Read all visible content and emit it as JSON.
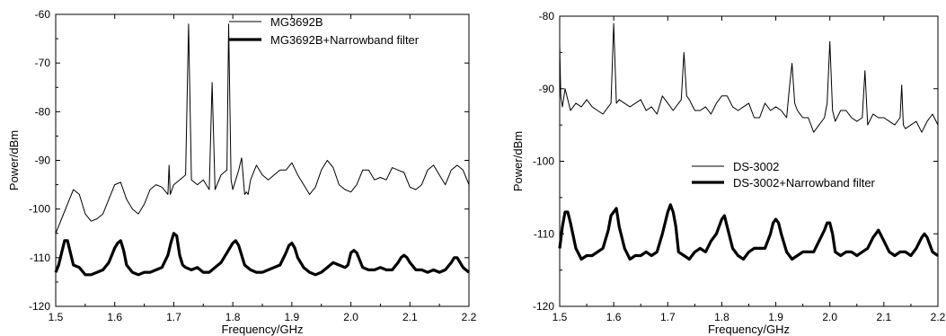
{
  "chart_data": [
    {
      "type": "line",
      "xlabel": "Frequency/GHz",
      "ylabel": "Power/dBm",
      "xlim": [
        1.5,
        2.2
      ],
      "ylim": [
        -120,
        -60
      ],
      "xticks": [
        "1.5",
        "1.6",
        "1.7",
        "1.8",
        "1.9",
        "2.0",
        "2.1",
        "2.2"
      ],
      "yticks": [
        "-120",
        "-110",
        "-100",
        "-90",
        "-80",
        "-70",
        "-60"
      ],
      "legend_position": "top-right",
      "series": [
        {
          "name": "MG3692B",
          "color": "#000000",
          "weight": "thin",
          "x": [
            1.5,
            1.51,
            1.52,
            1.53,
            1.54,
            1.55,
            1.56,
            1.57,
            1.58,
            1.59,
            1.6,
            1.61,
            1.62,
            1.63,
            1.64,
            1.65,
            1.66,
            1.67,
            1.68,
            1.69,
            1.692,
            1.694,
            1.7,
            1.71,
            1.72,
            1.725,
            1.73,
            1.74,
            1.75,
            1.76,
            1.765,
            1.77,
            1.78,
            1.79,
            1.793,
            1.797,
            1.8,
            1.81,
            1.815,
            1.82,
            1.823,
            1.826,
            1.83,
            1.84,
            1.85,
            1.86,
            1.87,
            1.88,
            1.89,
            1.9,
            1.91,
            1.92,
            1.93,
            1.94,
            1.95,
            1.96,
            1.97,
            1.98,
            1.99,
            2.0,
            2.01,
            2.02,
            2.03,
            2.04,
            2.05,
            2.06,
            2.07,
            2.08,
            2.09,
            2.1,
            2.11,
            2.12,
            2.13,
            2.14,
            2.15,
            2.16,
            2.17,
            2.18,
            2.19,
            2.2
          ],
          "y": [
            -105,
            -102,
            -99,
            -96,
            -97,
            -101,
            -102.5,
            -102,
            -101,
            -98,
            -95,
            -94.5,
            -98,
            -100,
            -101,
            -99,
            -96,
            -95,
            -95.5,
            -97,
            -91,
            -97,
            -95,
            -94,
            -93,
            -62,
            -94,
            -95,
            -94,
            -96,
            -74,
            -96,
            -93,
            -92,
            -62,
            -94,
            -96,
            -92,
            -89.5,
            -97,
            -96.5,
            -97,
            -94,
            -91,
            -93,
            -94,
            -93,
            -92,
            -92,
            -90.5,
            -93,
            -95,
            -97,
            -95.5,
            -92,
            -90,
            -91.5,
            -95,
            -96,
            -96.5,
            -95,
            -92,
            -92,
            -94,
            -93.5,
            -94,
            -91.5,
            -92,
            -92.5,
            -95.5,
            -96,
            -95,
            -92,
            -91,
            -93,
            -95,
            -92,
            -91,
            -92,
            -95
          ]
        },
        {
          "name": "MG3692B+Narrowband filter",
          "color": "#000000",
          "weight": "thick",
          "x": [
            1.5,
            1.505,
            1.51,
            1.515,
            1.52,
            1.525,
            1.53,
            1.54,
            1.55,
            1.56,
            1.57,
            1.58,
            1.59,
            1.6,
            1.605,
            1.61,
            1.615,
            1.62,
            1.63,
            1.64,
            1.65,
            1.66,
            1.67,
            1.68,
            1.69,
            1.695,
            1.7,
            1.705,
            1.71,
            1.715,
            1.72,
            1.73,
            1.74,
            1.75,
            1.76,
            1.77,
            1.78,
            1.79,
            1.8,
            1.805,
            1.81,
            1.82,
            1.83,
            1.84,
            1.85,
            1.86,
            1.87,
            1.88,
            1.89,
            1.895,
            1.9,
            1.905,
            1.91,
            1.92,
            1.93,
            1.94,
            1.95,
            1.96,
            1.97,
            1.98,
            1.99,
            1.995,
            2.0,
            2.005,
            2.01,
            2.02,
            2.03,
            2.04,
            2.05,
            2.06,
            2.07,
            2.08,
            2.085,
            2.09,
            2.095,
            2.1,
            2.11,
            2.12,
            2.13,
            2.14,
            2.15,
            2.16,
            2.17,
            2.175,
            2.18,
            2.19,
            2.2
          ],
          "y": [
            -113,
            -111.5,
            -109,
            -106.5,
            -106.5,
            -109,
            -111.5,
            -112,
            -113.5,
            -113.5,
            -113,
            -112.5,
            -111,
            -108,
            -107,
            -106.5,
            -108.5,
            -111.5,
            -113,
            -113.5,
            -113,
            -113,
            -112.5,
            -112,
            -109.5,
            -107,
            -105,
            -105.5,
            -109.5,
            -111.5,
            -112,
            -112.5,
            -112,
            -113,
            -113,
            -112,
            -111,
            -109,
            -107,
            -106.5,
            -107.5,
            -111.5,
            -112.5,
            -113,
            -113,
            -112.5,
            -112,
            -111.5,
            -109,
            -107.5,
            -107,
            -108,
            -110,
            -112,
            -113,
            -113.5,
            -113,
            -112,
            -111,
            -111.5,
            -112,
            -111.5,
            -109,
            -108.5,
            -109,
            -112,
            -112.5,
            -112.5,
            -112,
            -112.5,
            -112.5,
            -111,
            -110,
            -109.5,
            -110,
            -111,
            -112.5,
            -112.5,
            -113,
            -112.5,
            -113,
            -112.5,
            -111,
            -110,
            -110,
            -112,
            -113
          ]
        }
      ]
    },
    {
      "type": "line",
      "xlabel": "Frequency/GHz",
      "ylabel": "Power/dBm",
      "xlim": [
        1.5,
        2.2
      ],
      "ylim": [
        -120,
        -80
      ],
      "xticks": [
        "1.5",
        "1.6",
        "1.7",
        "1.8",
        "1.9",
        "2.0",
        "2.1",
        "2.2"
      ],
      "yticks": [
        "-120",
        "-110",
        "-100",
        "-90",
        "-80"
      ],
      "legend_position": "center-right",
      "series": [
        {
          "name": "DS-3002",
          "color": "#000000",
          "weight": "thin",
          "x": [
            1.5,
            1.502,
            1.505,
            1.51,
            1.52,
            1.53,
            1.54,
            1.55,
            1.56,
            1.57,
            1.58,
            1.59,
            1.595,
            1.6,
            1.605,
            1.61,
            1.62,
            1.63,
            1.64,
            1.65,
            1.66,
            1.67,
            1.68,
            1.69,
            1.7,
            1.71,
            1.72,
            1.725,
            1.73,
            1.735,
            1.74,
            1.75,
            1.76,
            1.77,
            1.78,
            1.79,
            1.8,
            1.81,
            1.82,
            1.83,
            1.84,
            1.85,
            1.86,
            1.87,
            1.88,
            1.89,
            1.9,
            1.91,
            1.92,
            1.925,
            1.93,
            1.935,
            1.94,
            1.95,
            1.96,
            1.97,
            1.98,
            1.99,
            1.995,
            2.0,
            2.005,
            2.01,
            2.02,
            2.03,
            2.04,
            2.05,
            2.06,
            2.065,
            2.07,
            2.08,
            2.09,
            2.1,
            2.11,
            2.12,
            2.13,
            2.133,
            2.136,
            2.14,
            2.15,
            2.16,
            2.17,
            2.18,
            2.19,
            2.2
          ],
          "y": [
            -84,
            -91,
            -92.5,
            -90,
            -93,
            -92,
            -92.5,
            -91.5,
            -92.5,
            -93,
            -93.5,
            -92.5,
            -92,
            -81,
            -92,
            -91.5,
            -92,
            -92.5,
            -92,
            -91.5,
            -93,
            -92.5,
            -93.5,
            -91,
            -92,
            -93,
            -92,
            -91.5,
            -85,
            -91,
            -91.5,
            -93,
            -93,
            -92.5,
            -93.5,
            -92,
            -91,
            -91,
            -92.5,
            -93,
            -92.5,
            -92,
            -94,
            -94,
            -92,
            -93,
            -92.5,
            -93,
            -94,
            -90,
            -86.5,
            -92,
            -93,
            -94,
            -94,
            -96,
            -95,
            -94,
            -92,
            -83.5,
            -93,
            -94.5,
            -93,
            -93,
            -94,
            -94.5,
            -94,
            -87.5,
            -95,
            -93.5,
            -94,
            -94,
            -94.5,
            -95,
            -94,
            -89.5,
            -95,
            -95.5,
            -95,
            -94.5,
            -96,
            -94.5,
            -93.5,
            -95
          ]
        },
        {
          "name": "DS-3002+Narrowband filter",
          "color": "#000000",
          "weight": "thick",
          "x": [
            1.5,
            1.505,
            1.51,
            1.515,
            1.52,
            1.53,
            1.54,
            1.55,
            1.56,
            1.57,
            1.58,
            1.59,
            1.595,
            1.6,
            1.605,
            1.61,
            1.62,
            1.63,
            1.64,
            1.65,
            1.66,
            1.67,
            1.68,
            1.69,
            1.7,
            1.705,
            1.71,
            1.715,
            1.72,
            1.73,
            1.74,
            1.75,
            1.76,
            1.77,
            1.78,
            1.79,
            1.8,
            1.805,
            1.81,
            1.82,
            1.83,
            1.84,
            1.85,
            1.86,
            1.87,
            1.88,
            1.89,
            1.895,
            1.9,
            1.905,
            1.91,
            1.92,
            1.93,
            1.94,
            1.95,
            1.96,
            1.97,
            1.98,
            1.99,
            1.995,
            2.0,
            2.005,
            2.01,
            2.02,
            2.03,
            2.04,
            2.05,
            2.06,
            2.07,
            2.08,
            2.085,
            2.09,
            2.1,
            2.11,
            2.12,
            2.13,
            2.14,
            2.15,
            2.16,
            2.17,
            2.175,
            2.18,
            2.19,
            2.2
          ],
          "y": [
            -112,
            -109,
            -107,
            -107,
            -108.5,
            -112,
            -113.5,
            -113,
            -113,
            -112.5,
            -112,
            -109.5,
            -107.5,
            -107,
            -106.5,
            -109,
            -112,
            -113.5,
            -113,
            -113,
            -112.5,
            -113,
            -112.5,
            -110,
            -107,
            -106,
            -107,
            -109,
            -112.5,
            -113,
            -113.5,
            -112.5,
            -112,
            -112.5,
            -111,
            -110,
            -108,
            -107.5,
            -109,
            -112,
            -113,
            -113.5,
            -112.5,
            -112,
            -112,
            -112,
            -110,
            -108.5,
            -108,
            -108.5,
            -110,
            -112.5,
            -113.5,
            -113,
            -112.5,
            -112.5,
            -112.5,
            -111,
            -109.5,
            -108.5,
            -108.5,
            -110,
            -112.5,
            -113,
            -112.5,
            -112.5,
            -113,
            -112.5,
            -112,
            -110.5,
            -110,
            -109.5,
            -111,
            -112.5,
            -113,
            -112.5,
            -112.5,
            -113,
            -112,
            -110.5,
            -110,
            -110.5,
            -112.5,
            -113
          ]
        }
      ]
    }
  ]
}
